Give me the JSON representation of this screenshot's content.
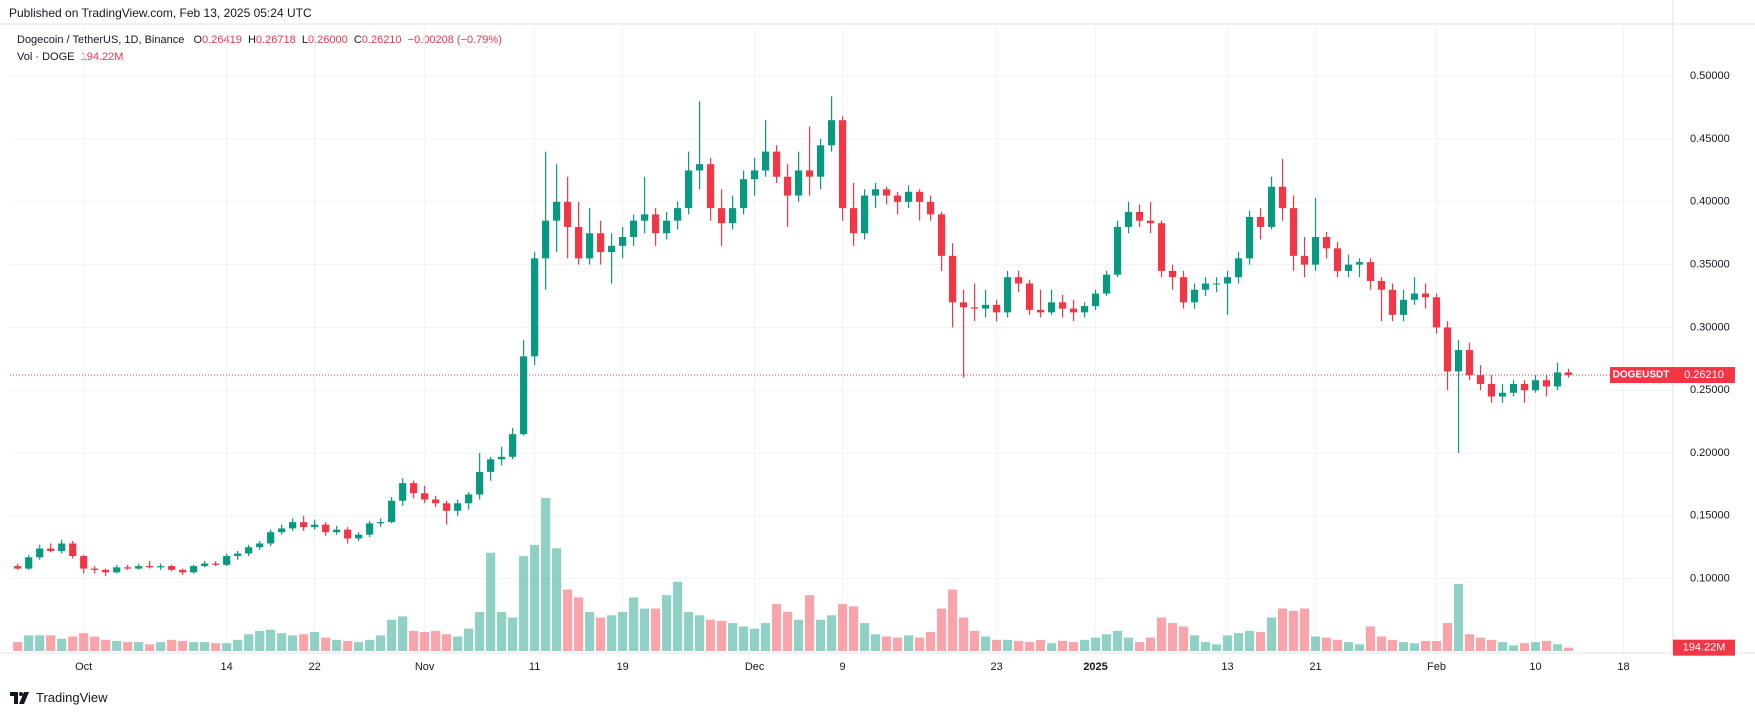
{
  "header": {
    "published": "Published on TradingView.com, Feb 13, 2025 05:24 UTC",
    "instrument": "Dogecoin / TetherUS, 1D, Binance",
    "open_key": "O",
    "open_label": "0.26419",
    "high_key": "H",
    "high_label": "0.26718",
    "low_key": "L",
    "low_label": "0.26000",
    "close_key": "C",
    "close_label": "0.26210",
    "change": "−0.00208 (−0.79%)",
    "volume_key": "Vol · DOGE",
    "volume_label": "194.22M",
    "brand": "TradingView"
  },
  "chart_data": {
    "type": "candlestick",
    "symbol": "DOGEUSDT",
    "price_label": "0.26210",
    "last_volume_label": "194.22M",
    "up_color": "#089981",
    "down_color": "#f23645",
    "grid": true,
    "xlim": [
      -0.7,
      150.5
    ],
    "ylim": [
      0.04,
      0.54
    ],
    "xticks": [
      {
        "value": 6,
        "label": "Oct"
      },
      {
        "value": 19,
        "label": "14"
      },
      {
        "value": 27,
        "label": "22"
      },
      {
        "value": 37,
        "label": "Nov"
      },
      {
        "value": 47,
        "label": "11"
      },
      {
        "value": 55,
        "label": "19"
      },
      {
        "value": 67,
        "label": "Dec"
      },
      {
        "value": 75,
        "label": "9"
      },
      {
        "value": 89,
        "label": "23"
      },
      {
        "value": 98,
        "label": "2025"
      },
      {
        "value": 110,
        "label": "13"
      },
      {
        "value": 118,
        "label": "21"
      },
      {
        "value": 129,
        "label": "Feb"
      },
      {
        "value": 138,
        "label": "10"
      },
      {
        "value": 146,
        "label": "18"
      }
    ],
    "yticks": [
      {
        "value": 0.1,
        "label": "0.10000"
      },
      {
        "value": 0.15,
        "label": "0.15000"
      },
      {
        "value": 0.2,
        "label": "0.20000"
      },
      {
        "value": 0.25,
        "label": "0.25000"
      },
      {
        "value": 0.3,
        "label": "0.30000"
      },
      {
        "value": 0.35,
        "label": "0.35000"
      },
      {
        "value": 0.4,
        "label": "0.40000"
      },
      {
        "value": 0.45,
        "label": "0.45000"
      },
      {
        "value": 0.5,
        "label": "0.50000"
      }
    ],
    "open": [
      0.11,
      0.108,
      0.117,
      0.124,
      0.122,
      0.128,
      0.118,
      0.108,
      0.107,
      0.105,
      0.109,
      0.108,
      0.11,
      0.109,
      0.11,
      0.107,
      0.105,
      0.11,
      0.112,
      0.111,
      0.118,
      0.12,
      0.125,
      0.128,
      0.137,
      0.14,
      0.145,
      0.141,
      0.143,
      0.137,
      0.139,
      0.132,
      0.135,
      0.144,
      0.145,
      0.162,
      0.176,
      0.168,
      0.163,
      0.16,
      0.154,
      0.16,
      0.167,
      0.185,
      0.195,
      0.197,
      0.215,
      0.277,
      0.355,
      0.385,
      0.4,
      0.38,
      0.355,
      0.375,
      0.36,
      0.365,
      0.372,
      0.385,
      0.39,
      0.375,
      0.385,
      0.395,
      0.425,
      0.43,
      0.395,
      0.383,
      0.395,
      0.418,
      0.425,
      0.44,
      0.42,
      0.405,
      0.425,
      0.42,
      0.445,
      0.465,
      0.395,
      0.375,
      0.405,
      0.41,
      0.405,
      0.4,
      0.408,
      0.4,
      0.39,
      0.357,
      0.32,
      0.316,
      0.315,
      0.318,
      0.312,
      0.34,
      0.335,
      0.314,
      0.312,
      0.32,
      0.315,
      0.312,
      0.317,
      0.327,
      0.342,
      0.38,
      0.392,
      0.385,
      0.383,
      0.345,
      0.34,
      0.32,
      0.33,
      0.335,
      0.335,
      0.34,
      0.355,
      0.388,
      0.38,
      0.412,
      0.395,
      0.357,
      0.35,
      0.372,
      0.363,
      0.345,
      0.35,
      0.352,
      0.337,
      0.33,
      0.31,
      0.322,
      0.327,
      0.324,
      0.3,
      0.265,
      0.282,
      0.262,
      0.255,
      0.245,
      0.248,
      0.255,
      0.25,
      0.258,
      0.253,
      0.26419
    ],
    "high": [
      0.112,
      0.119,
      0.127,
      0.128,
      0.131,
      0.13,
      0.119,
      0.11,
      0.108,
      0.111,
      0.111,
      0.112,
      0.114,
      0.112,
      0.111,
      0.108,
      0.111,
      0.114,
      0.114,
      0.12,
      0.122,
      0.127,
      0.13,
      0.139,
      0.143,
      0.148,
      0.15,
      0.147,
      0.145,
      0.142,
      0.141,
      0.137,
      0.146,
      0.148,
      0.165,
      0.18,
      0.178,
      0.174,
      0.166,
      0.162,
      0.163,
      0.169,
      0.2,
      0.197,
      0.205,
      0.22,
      0.29,
      0.36,
      0.44,
      0.43,
      0.42,
      0.4,
      0.395,
      0.385,
      0.375,
      0.38,
      0.39,
      0.42,
      0.395,
      0.392,
      0.4,
      0.44,
      0.48,
      0.435,
      0.41,
      0.405,
      0.425,
      0.435,
      0.465,
      0.445,
      0.43,
      0.44,
      0.46,
      0.45,
      0.484,
      0.468,
      0.415,
      0.41,
      0.415,
      0.412,
      0.408,
      0.413,
      0.41,
      0.405,
      0.392,
      0.367,
      0.33,
      0.335,
      0.33,
      0.322,
      0.345,
      0.345,
      0.338,
      0.33,
      0.33,
      0.326,
      0.322,
      0.32,
      0.33,
      0.345,
      0.385,
      0.4,
      0.398,
      0.4,
      0.385,
      0.35,
      0.345,
      0.335,
      0.34,
      0.34,
      0.345,
      0.36,
      0.393,
      0.395,
      0.42,
      0.434,
      0.405,
      0.372,
      0.403,
      0.376,
      0.368,
      0.358,
      0.355,
      0.355,
      0.34,
      0.335,
      0.33,
      0.34,
      0.335,
      0.327,
      0.305,
      0.29,
      0.288,
      0.27,
      0.262,
      0.255,
      0.258,
      0.258,
      0.262,
      0.262,
      0.272,
      0.26718
    ],
    "low": [
      0.107,
      0.107,
      0.115,
      0.121,
      0.12,
      0.116,
      0.104,
      0.104,
      0.102,
      0.104,
      0.107,
      0.107,
      0.108,
      0.107,
      0.106,
      0.103,
      0.104,
      0.109,
      0.11,
      0.11,
      0.115,
      0.118,
      0.123,
      0.126,
      0.135,
      0.138,
      0.138,
      0.139,
      0.134,
      0.135,
      0.128,
      0.13,
      0.133,
      0.141,
      0.144,
      0.158,
      0.164,
      0.16,
      0.157,
      0.143,
      0.15,
      0.155,
      0.163,
      0.178,
      0.19,
      0.195,
      0.214,
      0.27,
      0.33,
      0.36,
      0.355,
      0.35,
      0.35,
      0.35,
      0.335,
      0.355,
      0.365,
      0.375,
      0.365,
      0.37,
      0.378,
      0.39,
      0.41,
      0.385,
      0.365,
      0.378,
      0.39,
      0.405,
      0.42,
      0.415,
      0.38,
      0.4,
      0.405,
      0.41,
      0.44,
      0.385,
      0.365,
      0.37,
      0.395,
      0.398,
      0.39,
      0.395,
      0.385,
      0.385,
      0.345,
      0.3,
      0.26,
      0.305,
      0.308,
      0.305,
      0.308,
      0.328,
      0.31,
      0.308,
      0.31,
      0.308,
      0.305,
      0.308,
      0.314,
      0.325,
      0.34,
      0.375,
      0.38,
      0.375,
      0.34,
      0.33,
      0.315,
      0.315,
      0.325,
      0.328,
      0.31,
      0.335,
      0.35,
      0.37,
      0.378,
      0.385,
      0.345,
      0.34,
      0.345,
      0.355,
      0.34,
      0.34,
      0.34,
      0.33,
      0.305,
      0.305,
      0.305,
      0.318,
      0.315,
      0.295,
      0.25,
      0.2,
      0.258,
      0.25,
      0.24,
      0.24,
      0.245,
      0.24,
      0.248,
      0.245,
      0.25,
      0.26
    ],
    "close": [
      0.108,
      0.117,
      0.124,
      0.122,
      0.128,
      0.118,
      0.108,
      0.107,
      0.105,
      0.109,
      0.108,
      0.11,
      0.109,
      0.11,
      0.107,
      0.105,
      0.11,
      0.112,
      0.111,
      0.118,
      0.12,
      0.125,
      0.128,
      0.137,
      0.14,
      0.145,
      0.141,
      0.143,
      0.137,
      0.139,
      0.132,
      0.135,
      0.144,
      0.145,
      0.162,
      0.176,
      0.168,
      0.163,
      0.16,
      0.154,
      0.16,
      0.167,
      0.185,
      0.195,
      0.197,
      0.215,
      0.277,
      0.355,
      0.385,
      0.4,
      0.38,
      0.355,
      0.375,
      0.36,
      0.365,
      0.372,
      0.385,
      0.39,
      0.375,
      0.385,
      0.395,
      0.425,
      0.43,
      0.395,
      0.383,
      0.395,
      0.418,
      0.425,
      0.44,
      0.42,
      0.405,
      0.425,
      0.42,
      0.445,
      0.465,
      0.395,
      0.375,
      0.405,
      0.41,
      0.405,
      0.4,
      0.408,
      0.4,
      0.39,
      0.357,
      0.32,
      0.316,
      0.315,
      0.318,
      0.312,
      0.34,
      0.335,
      0.314,
      0.312,
      0.32,
      0.315,
      0.312,
      0.317,
      0.327,
      0.342,
      0.38,
      0.392,
      0.385,
      0.383,
      0.345,
      0.34,
      0.32,
      0.33,
      0.335,
      0.335,
      0.34,
      0.355,
      0.388,
      0.38,
      0.412,
      0.395,
      0.357,
      0.35,
      0.372,
      0.363,
      0.345,
      0.35,
      0.352,
      0.337,
      0.33,
      0.31,
      0.322,
      0.327,
      0.324,
      0.3,
      0.265,
      0.282,
      0.262,
      0.255,
      0.245,
      0.248,
      0.255,
      0.25,
      0.258,
      0.253,
      0.26419,
      0.2621
    ],
    "volume": [
      520,
      910,
      910,
      910,
      715,
      845,
      1040,
      845,
      650,
      585,
      520,
      520,
      390,
      520,
      650,
      585,
      520,
      520,
      455,
      455,
      650,
      975,
      1170,
      1235,
      1040,
      910,
      975,
      1105,
      780,
      650,
      585,
      520,
      650,
      910,
      1820,
      2015,
      1170,
      1105,
      1170,
      975,
      845,
      1300,
      2275,
      5720,
      2275,
      1950,
      5525,
      6175,
      8905,
      5980,
      3575,
      3120,
      2275,
      1950,
      2080,
      2275,
      3120,
      2470,
      2470,
      3250,
      4030,
      2275,
      2080,
      1820,
      1755,
      1625,
      1430,
      1300,
      1625,
      2730,
      2275,
      1820,
      3250,
      1820,
      2080,
      2730,
      2600,
      1625,
      975,
      845,
      780,
      910,
      780,
      1105,
      2470,
      3575,
      1950,
      1170,
      845,
      650,
      650,
      585,
      520,
      650,
      455,
      585,
      520,
      650,
      780,
      975,
      1170,
      780,
      520,
      780,
      1950,
      1625,
      1430,
      910,
      520,
      390,
      910,
      1040,
      1170,
      1105,
      1950,
      2470,
      2340,
      2470,
      845,
      780,
      650,
      520,
      390,
      1430,
      845,
      650,
      520,
      455,
      585,
      585,
      1625,
      3900,
      975,
      780,
      650,
      520,
      325,
      455,
      520,
      585,
      390,
      194.22
    ]
  }
}
